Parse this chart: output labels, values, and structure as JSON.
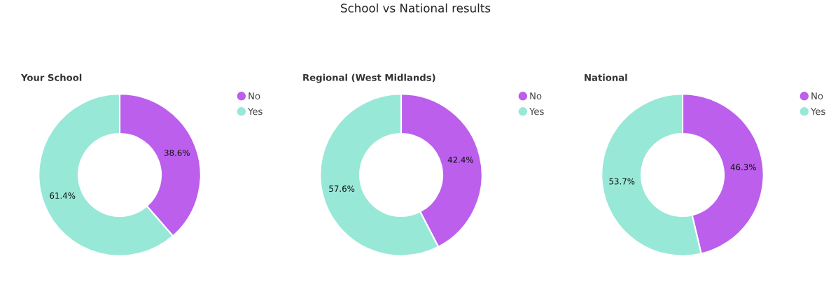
{
  "chart_data": [
    {
      "type": "other",
      "title": "School vs National results"
    },
    {
      "type": "donut",
      "title": "Your School",
      "categories": [
        "No",
        "Yes"
      ],
      "values": [
        38.6,
        61.4
      ],
      "value_labels": [
        "38.6%",
        "61.4%"
      ],
      "colors": [
        "#bb5fec",
        "#98e8d8"
      ],
      "legend": "top right"
    },
    {
      "type": "donut",
      "title": "Regional (West Midlands)",
      "categories": [
        "No",
        "Yes"
      ],
      "values": [
        42.4,
        57.6
      ],
      "value_labels": [
        "42.4%",
        "57.6%"
      ],
      "colors": [
        "#bb5fec",
        "#98e8d8"
      ],
      "legend": "top right"
    },
    {
      "type": "donut",
      "title": "National",
      "categories": [
        "No",
        "Yes"
      ],
      "values": [
        46.3,
        53.7
      ],
      "value_labels": [
        "46.3%",
        "53.7%"
      ],
      "colors": [
        "#bb5fec",
        "#98e8d8"
      ],
      "legend": "top right"
    }
  ]
}
